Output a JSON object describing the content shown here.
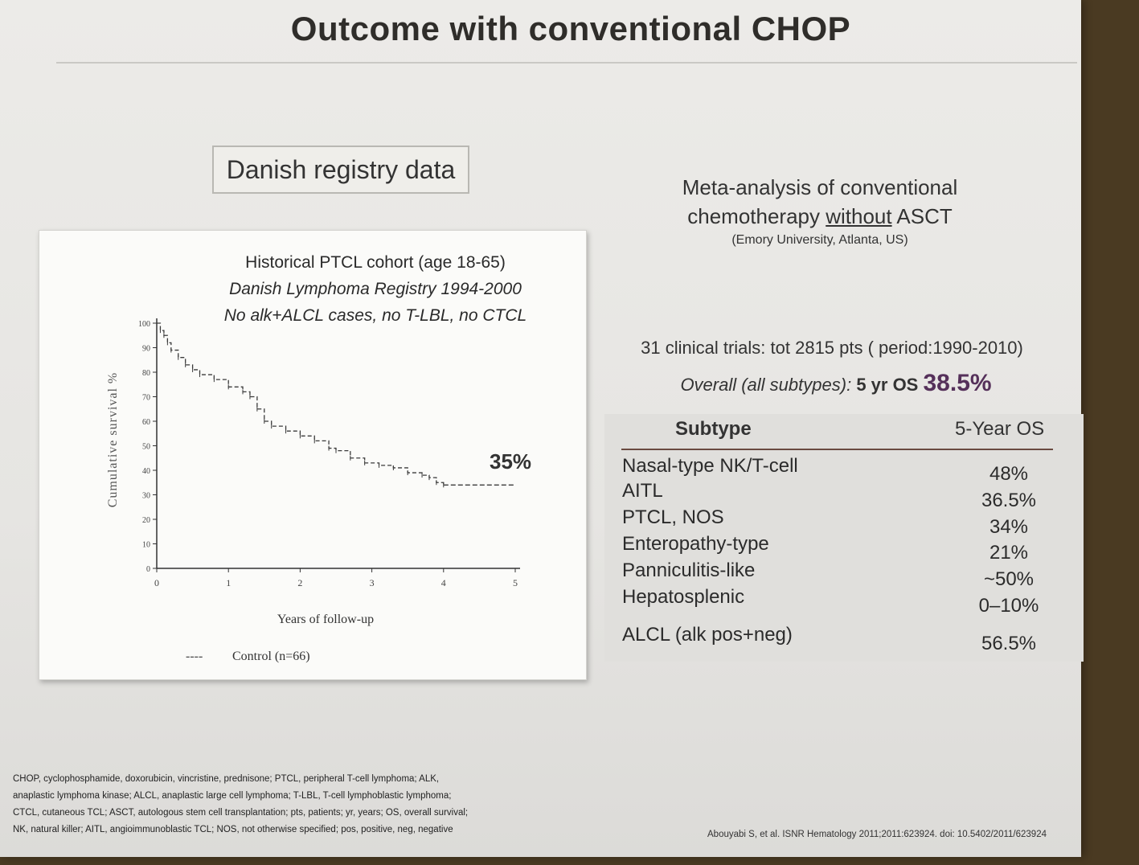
{
  "slide": {
    "title": "Outcome with conventional CHOP",
    "left_tag": "Danish registry data"
  },
  "km_panel": {
    "header_line1": "Historical PTCL cohort (age 18-65)",
    "header_line2": "Danish Lymphoma Registry 1994-2000",
    "header_line3": "No alk+ALCL cases, no T-LBL, no CTCL",
    "callout": "35%",
    "legend_swatch": "----",
    "legend_label": "Control (n=66)"
  },
  "chart_data": {
    "type": "line",
    "title": "",
    "xlabel": "Years of follow-up",
    "ylabel": "Cumulative survival %",
    "xlim": [
      0,
      5
    ],
    "ylim": [
      0,
      100
    ],
    "x_ticks": [
      0,
      1,
      2,
      3,
      4,
      5
    ],
    "y_ticks": [
      0,
      10,
      20,
      30,
      40,
      50,
      60,
      70,
      80,
      90,
      100
    ],
    "series": [
      {
        "name": "Control (n=66)",
        "x": [
          0,
          0.05,
          0.1,
          0.15,
          0.2,
          0.3,
          0.4,
          0.5,
          0.6,
          0.8,
          1.0,
          1.2,
          1.3,
          1.4,
          1.5,
          1.6,
          1.8,
          2.0,
          2.2,
          2.4,
          2.5,
          2.7,
          2.9,
          3.1,
          3.3,
          3.5,
          3.7,
          3.8,
          3.9,
          4.0,
          4.5,
          5.0
        ],
        "y": [
          100,
          97,
          95,
          92,
          89,
          86,
          83,
          81,
          79,
          77,
          74,
          72,
          70,
          65,
          60,
          58,
          56,
          54,
          52,
          49,
          48,
          45,
          43,
          42,
          41,
          39,
          38,
          37,
          35,
          34,
          34,
          34
        ]
      }
    ]
  },
  "right": {
    "meta_line1": "Meta-analysis of conventional",
    "meta_line2_pre": "chemotherapy ",
    "meta_line2_under": "without",
    "meta_line2_post": " ASCT",
    "meta_source": "(Emory University, Atlanta, US)",
    "trials": "31 clinical trials: tot 2815 pts ( period:1990-2010)",
    "overall_label": "Overall (all subtypes):",
    "overall_yr": "5 yr OS",
    "overall_pct": "38.5%"
  },
  "table": {
    "col_subtype": "Subtype",
    "col_os": "5-Year OS",
    "rows": [
      {
        "name": "Nasal-type NK/T-cell",
        "os": "48%"
      },
      {
        "name": "AITL",
        "os": "36.5%"
      },
      {
        "name": "PTCL, NOS",
        "os": "34%"
      },
      {
        "name": "Enteropathy-type",
        "os": "21%"
      },
      {
        "name": "Panniculitis-like",
        "os": "~50%"
      },
      {
        "name": "Hepatosplenic",
        "os": "0–10%"
      },
      {
        "name": "ALCL (alk pos+neg)",
        "os": "56.5%"
      }
    ]
  },
  "footnote": [
    "CHOP, cyclophosphamide, doxorubicin, vincristine, prednisone; PTCL, peripheral T-cell lymphoma; ALK,",
    "anaplastic lymphoma kinase; ALCL, anaplastic large cell lymphoma; T-LBL, T-cell lymphoblastic lymphoma;",
    "CTCL, cutaneous TCL; ASCT, autologous stem cell transplantation; pts, patients; yr, years; OS, overall survival;",
    "NK, natural killer; AITL, angioimmunoblastic TCL; NOS, not otherwise specified; pos, positive, neg, negative"
  ],
  "citation": "Abouyabi S, et al. ISNR Hematology 2011;2011:623924. doi: 10.5402/2011/623924"
}
